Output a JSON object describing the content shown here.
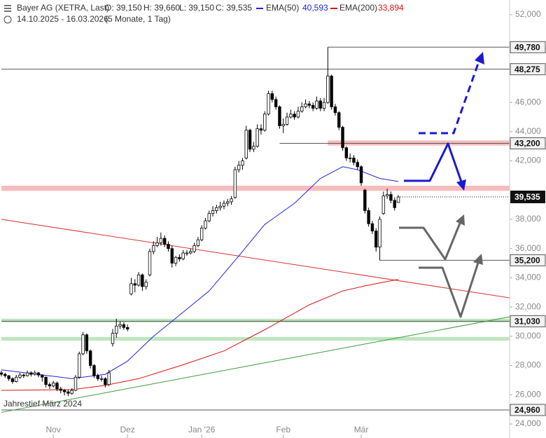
{
  "chart_data": {
    "type": "candlestick",
    "title": "Bayer AG (XETRA, Last)",
    "ohlc_header": [
      "O: 39,150",
      "H: 39,660",
      "L: 39,150",
      "C: 39,535"
    ],
    "subtitle": "14.10.2025 - 16.03.2026",
    "period": "(5 Monate, 1 Tag)",
    "annotation": "Jahrestief März 2024",
    "xlim": [
      0,
      137
    ],
    "ylim": [
      24000,
      52000
    ],
    "xticks": [
      {
        "value": 14,
        "label": "Nov"
      },
      {
        "value": 34,
        "label": "Dez"
      },
      {
        "value": 54,
        "label": "Jan '26"
      },
      {
        "value": 76,
        "label": "Feb"
      },
      {
        "value": 97,
        "label": "Mär"
      }
    ],
    "yticks": [
      {
        "value": 52000,
        "label": "52,000"
      },
      {
        "value": 46000,
        "label": "46,000"
      },
      {
        "value": 44000,
        "label": "44,000"
      },
      {
        "value": 42000,
        "label": "42,000"
      },
      {
        "value": 38000,
        "label": "38,000"
      },
      {
        "value": 36000,
        "label": "36,000"
      },
      {
        "value": 34000,
        "label": "34,000"
      },
      {
        "value": 32000,
        "label": "32,000"
      },
      {
        "value": 30000,
        "label": "30,000"
      },
      {
        "value": 28000,
        "label": "28,000"
      },
      {
        "value": 26000,
        "label": "26,000"
      },
      {
        "value": 24000,
        "label": "24,000"
      }
    ],
    "last_price_label": "39,535",
    "series": [
      {
        "name": "Bayer AG",
        "up_color": "#ffffff",
        "down_color": "#000000",
        "ohlc": [
          [
            27500,
            27650,
            27250,
            27400
          ],
          [
            27400,
            27500,
            27150,
            27300
          ],
          [
            27300,
            27350,
            26950,
            27100
          ],
          [
            27100,
            27200,
            26750,
            26900
          ],
          [
            26900,
            27350,
            26850,
            27200
          ],
          [
            27200,
            27500,
            27100,
            27350
          ],
          [
            27350,
            27450,
            27150,
            27300
          ],
          [
            27300,
            27650,
            27250,
            27500
          ],
          [
            27500,
            27600,
            27250,
            27400
          ],
          [
            27400,
            27650,
            27300,
            27500
          ],
          [
            27500,
            27550,
            27200,
            27350
          ],
          [
            27350,
            27400,
            26900,
            27200
          ],
          [
            27200,
            27250,
            26500,
            26700
          ],
          [
            26700,
            26850,
            26400,
            26600
          ],
          [
            26600,
            26950,
            26500,
            26800
          ],
          [
            26800,
            26900,
            26250,
            26400
          ],
          [
            26400,
            26550,
            26100,
            26300
          ],
          [
            26300,
            26400,
            25950,
            26200
          ],
          [
            26200,
            26350,
            25900,
            26100
          ],
          [
            26100,
            26450,
            26000,
            26300
          ],
          [
            26300,
            27350,
            26250,
            27200
          ],
          [
            27200,
            28950,
            27100,
            28800
          ],
          [
            28800,
            30300,
            28700,
            30100
          ],
          [
            30100,
            30200,
            28800,
            29000
          ],
          [
            29000,
            29100,
            27800,
            28000
          ],
          [
            28000,
            28100,
            27150,
            27300
          ],
          [
            27300,
            27450,
            26950,
            27100
          ],
          [
            27100,
            27300,
            26900,
            27100
          ],
          [
            27100,
            27200,
            26500,
            26700
          ],
          [
            26700,
            27700,
            26600,
            27500
          ],
          [
            29500,
            30500,
            29300,
            30200
          ],
          [
            30200,
            31200,
            29900,
            30700
          ],
          [
            30700,
            31000,
            30500,
            30800
          ],
          [
            30800,
            30950,
            30450,
            30600
          ],
          [
            30600,
            30800,
            30350,
            30500
          ],
          [
            32900,
            34000,
            32800,
            33600
          ],
          [
            33600,
            33900,
            33000,
            33500
          ],
          [
            33500,
            34400,
            33400,
            34200
          ],
          [
            34200,
            34300,
            33100,
            33400
          ],
          [
            33400,
            33900,
            33200,
            33700
          ],
          [
            34200,
            36000,
            34100,
            35800
          ],
          [
            35800,
            36500,
            35600,
            36200
          ],
          [
            36200,
            36800,
            36100,
            36400
          ],
          [
            36400,
            37100,
            36200,
            36700
          ],
          [
            36700,
            36900,
            36100,
            36300
          ],
          [
            36300,
            36500,
            35800,
            36000
          ],
          [
            36000,
            36200,
            34700,
            35000
          ],
          [
            35000,
            35500,
            34800,
            35400
          ],
          [
            35400,
            35600,
            35100,
            35300
          ],
          [
            35300,
            35900,
            35200,
            35700
          ],
          [
            35700,
            35900,
            35500,
            35700
          ],
          [
            35700,
            36000,
            35600,
            35800
          ],
          [
            35800,
            36400,
            35700,
            36200
          ],
          [
            36200,
            36800,
            36100,
            36600
          ],
          [
            36600,
            37600,
            36500,
            37400
          ],
          [
            37400,
            38100,
            37300,
            37900
          ],
          [
            37900,
            38600,
            37800,
            38400
          ],
          [
            38400,
            38900,
            38200,
            38600
          ],
          [
            38600,
            39000,
            38400,
            38800
          ],
          [
            38800,
            39200,
            38600,
            38900
          ],
          [
            38900,
            39300,
            38700,
            39100
          ],
          [
            39100,
            39400,
            38900,
            39200
          ],
          [
            39200,
            39600,
            39000,
            39400
          ],
          [
            39500,
            41600,
            39400,
            41400
          ],
          [
            41400,
            42000,
            41200,
            41700
          ],
          [
            41700,
            42200,
            41400,
            42000
          ],
          [
            42200,
            44400,
            42100,
            44100
          ],
          [
            44100,
            44200,
            42600,
            42800
          ],
          [
            42800,
            43300,
            42600,
            43000
          ],
          [
            43000,
            44500,
            42900,
            44200
          ],
          [
            44200,
            44500,
            43800,
            44100
          ],
          [
            44100,
            45400,
            44000,
            45200
          ],
          [
            45200,
            46800,
            45100,
            46600
          ],
          [
            46600,
            46800,
            46000,
            46200
          ],
          [
            46200,
            46400,
            45500,
            45700
          ],
          [
            45700,
            45800,
            44200,
            44400
          ],
          [
            44400,
            44900,
            43900,
            44500
          ],
          [
            44500,
            45300,
            44400,
            45000
          ],
          [
            45000,
            45500,
            44900,
            45200
          ],
          [
            45200,
            45400,
            44800,
            45000
          ],
          [
            45000,
            45700,
            44900,
            45400
          ],
          [
            45400,
            46000,
            45300,
            45700
          ],
          [
            45700,
            46200,
            45600,
            45900
          ],
          [
            45900,
            46100,
            45600,
            45800
          ],
          [
            45800,
            46000,
            45400,
            45600
          ],
          [
            45600,
            46400,
            45500,
            46100
          ],
          [
            46100,
            46300,
            45400,
            45600
          ],
          [
            45600,
            46300,
            45400,
            46000
          ],
          [
            46000,
            49780,
            45900,
            47800
          ],
          [
            47800,
            47900,
            45500,
            45700
          ],
          [
            45700,
            45900,
            45100,
            45300
          ],
          [
            45300,
            45400,
            44100,
            44300
          ],
          [
            44300,
            44400,
            42700,
            42900
          ],
          [
            42900,
            43000,
            42000,
            42200
          ],
          [
            42200,
            42500,
            41900,
            42200
          ],
          [
            42200,
            42400,
            41700,
            41900
          ],
          [
            41900,
            42100,
            41400,
            41600
          ],
          [
            41600,
            41700,
            40300,
            40500
          ],
          [
            40000,
            40100,
            38400,
            38600
          ],
          [
            38600,
            38800,
            37500,
            37700
          ],
          [
            37700,
            37900,
            37000,
            37200
          ],
          [
            37200,
            37400,
            35800,
            36100
          ],
          [
            36100,
            38200,
            35200,
            38000
          ],
          [
            38400,
            39900,
            38300,
            39600
          ],
          [
            39600,
            40100,
            39400,
            39700
          ],
          [
            39700,
            39900,
            39100,
            39300
          ],
          [
            39300,
            39500,
            38600,
            38800
          ],
          [
            39150,
            39660,
            39150,
            39535
          ]
        ]
      }
    ],
    "lines": [
      {
        "name": "EMA(50)",
        "last_label": "40,593",
        "color": "#2222dd",
        "x": [
          0,
          19,
          28,
          34,
          41,
          49,
          56,
          64,
          71,
          79,
          86,
          92,
          96,
          102,
          107
        ],
        "values": [
          27700,
          27100,
          27400,
          28300,
          30000,
          31650,
          33100,
          35500,
          37650,
          39100,
          40800,
          41600,
          41400,
          40800,
          40593
        ]
      },
      {
        "name": "EMA(200)",
        "last_label": "33,894",
        "color": "#dd1111",
        "x": [
          0,
          19,
          28,
          37,
          49,
          60,
          71,
          83,
          92,
          98,
          107
        ],
        "values": [
          26300,
          26350,
          26640,
          27100,
          28050,
          29000,
          30450,
          32150,
          33100,
          33450,
          33894
        ]
      }
    ],
    "trendlines": [
      {
        "color": "#e03030",
        "x": [
          0,
          137
        ],
        "values": [
          38000,
          32630
        ]
      },
      {
        "color": "#3a9a3a",
        "x": [
          0,
          137
        ],
        "values": [
          24800,
          31330
        ]
      }
    ],
    "zones": [
      {
        "from": 43050,
        "to": 43400,
        "color": "#f6bcbc",
        "x_start": 88
      },
      {
        "from": 39950,
        "to": 40300,
        "color": "#f6bcbc",
        "x_start": 0
      },
      {
        "from": 30950,
        "to": 31200,
        "color": "#bfe6bf",
        "x_start": 0
      },
      {
        "from": 29700,
        "to": 29950,
        "color": "#bfe6bf",
        "x_start": 0
      }
    ],
    "levels": [
      {
        "value": 49780,
        "label": "49,780",
        "x_start": 88
      },
      {
        "value": 48275,
        "label": "48,275",
        "x_start": 0
      },
      {
        "value": 43200,
        "label": "43,200",
        "x_start": 75
      },
      {
        "value": 35200,
        "label": "35,200",
        "x_start": 102
      },
      {
        "value": 31030,
        "label": "31,030",
        "x_start": 0
      },
      {
        "value": 24960,
        "label": "24,960",
        "x_start": 0
      }
    ]
  }
}
